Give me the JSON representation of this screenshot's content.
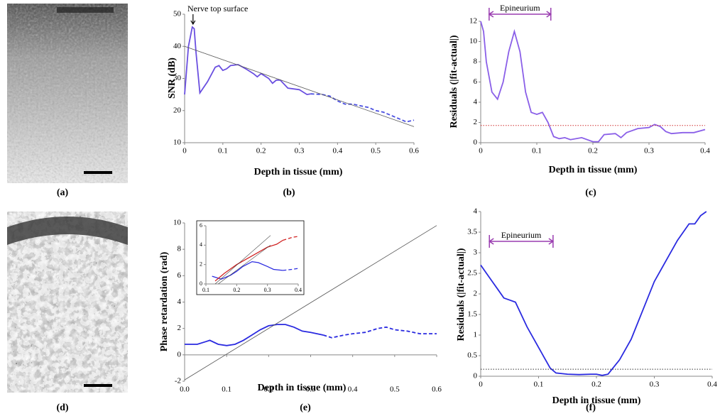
{
  "panels": [
    "(a)",
    "(b)",
    "(c)",
    "(d)",
    "(e)",
    "(f)"
  ],
  "chart_data": [
    {
      "type": "line",
      "xlabel": "Depth in tissue (mm)",
      "ylabel": "SNR (dB)",
      "xlim": [
        0,
        0.6
      ],
      "ylim": [
        10,
        50
      ],
      "xticks": [
        0,
        0.1,
        0.2,
        0.3,
        0.4,
        0.5,
        0.6
      ],
      "yticks": [
        10,
        20,
        30,
        40,
        50
      ],
      "annotations": [
        "Nerve top surface"
      ],
      "series": [
        {
          "color": "#6a4fe0",
          "dash": "solid",
          "x": [
            0,
            0.01,
            0.02,
            0.025,
            0.03,
            0.04,
            0.06,
            0.08,
            0.09,
            0.1,
            0.11,
            0.12,
            0.14,
            0.16,
            0.18,
            0.19,
            0.2,
            0.22,
            0.23,
            0.24,
            0.25,
            0.27,
            0.3,
            0.32,
            0.33
          ],
          "values": [
            25,
            40,
            46,
            45.5,
            38,
            25.5,
            29,
            33.5,
            34,
            32.5,
            33,
            34,
            34.3,
            33,
            31.5,
            30.5,
            31.5,
            30,
            28.5,
            29.5,
            29.5,
            27,
            26.5,
            25,
            25.2
          ]
        },
        {
          "color": "#4a4fe0",
          "dash": "dashed",
          "x": [
            0.33,
            0.36,
            0.38,
            0.4,
            0.42,
            0.44,
            0.46,
            0.48,
            0.5,
            0.52,
            0.54,
            0.56,
            0.58,
            0.6
          ],
          "values": [
            25.2,
            25,
            24.5,
            23,
            22,
            22,
            21.5,
            21,
            20,
            19.5,
            18.5,
            17.5,
            16.5,
            17
          ]
        },
        {
          "color": "#555555",
          "dash": "thin",
          "x": [
            0,
            0.6
          ],
          "values": [
            40,
            15
          ]
        }
      ]
    },
    {
      "type": "line",
      "xlabel": "Depth in tissue (mm)",
      "ylabel": "Residuals (|fit-actual|)",
      "xlim": [
        0,
        0.4
      ],
      "ylim": [
        0,
        12
      ],
      "xticks": [
        0,
        0.1,
        0.2,
        0.3,
        0.4
      ],
      "yticks": [
        0,
        2,
        4,
        6,
        8,
        10,
        12
      ],
      "annotations": [
        "Epineurium"
      ],
      "series": [
        {
          "color": "#8a5fe8",
          "dash": "solid",
          "x": [
            0,
            0.005,
            0.01,
            0.02,
            0.03,
            0.04,
            0.05,
            0.06,
            0.07,
            0.08,
            0.09,
            0.1,
            0.11,
            0.12,
            0.13,
            0.14,
            0.15,
            0.16,
            0.18,
            0.2,
            0.21,
            0.22,
            0.24,
            0.25,
            0.26,
            0.28,
            0.3,
            0.31,
            0.32,
            0.33,
            0.34,
            0.36,
            0.38,
            0.4
          ],
          "values": [
            12,
            11,
            8,
            5,
            4.3,
            6,
            9,
            11,
            9,
            5,
            3,
            2.8,
            3,
            2,
            0.6,
            0.4,
            0.5,
            0.3,
            0.5,
            0.1,
            0.1,
            0.8,
            0.9,
            0.5,
            1.0,
            1.4,
            1.5,
            1.8,
            1.6,
            1.1,
            0.9,
            1.0,
            1,
            1.3
          ]
        },
        {
          "color": "#d03030",
          "dash": "dotted",
          "x": [
            0,
            0.4
          ],
          "values": [
            1.7,
            1.7
          ]
        }
      ]
    },
    {
      "type": "line",
      "xlabel": "Depth in tissue (mm)",
      "ylabel": "Phase retardation (rad)",
      "xlim": [
        0,
        0.6
      ],
      "ylim": [
        -2,
        10
      ],
      "xticks": [
        {
          "value": 0,
          "label": "0.0"
        },
        0.1,
        0.2,
        0.3,
        0.4,
        0.5,
        0.6
      ],
      "yticks": [
        -2,
        0,
        2,
        4,
        6,
        8,
        10
      ],
      "series": [
        {
          "color": "#2a2ae0",
          "dash": "solid",
          "x": [
            0,
            0.03,
            0.05,
            0.06,
            0.08,
            0.1,
            0.12,
            0.14,
            0.16,
            0.18,
            0.2,
            0.22,
            0.24,
            0.26,
            0.28,
            0.3,
            0.33
          ],
          "values": [
            0.8,
            0.8,
            1,
            1.1,
            0.8,
            0.7,
            0.8,
            1.1,
            1.5,
            1.9,
            2.2,
            2.3,
            2.3,
            2.1,
            1.8,
            1.7,
            1.5
          ]
        },
        {
          "color": "#2a2ae0",
          "dash": "dashed",
          "x": [
            0.33,
            0.35,
            0.38,
            0.4,
            0.43,
            0.46,
            0.48,
            0.5,
            0.53,
            0.56,
            0.6
          ],
          "values": [
            1.5,
            1.3,
            1.5,
            1.6,
            1.7,
            2.0,
            2.1,
            1.9,
            1.8,
            1.6,
            1.6
          ]
        },
        {
          "color": "#555555",
          "dash": "thin",
          "x": [
            0,
            0.6
          ],
          "values": [
            -1.9,
            9.8
          ]
        }
      ]
    },
    {
      "type": "line",
      "inset": true,
      "xlim": [
        0.1,
        0.4
      ],
      "ylim": [
        0,
        6
      ],
      "xticks": [
        0.1,
        0.2,
        0.3,
        0.4
      ],
      "yticks": [
        0,
        2,
        4,
        6
      ],
      "series": [
        {
          "color": "#2a2ae0",
          "dash": "solid",
          "x": [
            0.12,
            0.15,
            0.18,
            0.2,
            0.22,
            0.25,
            0.27,
            0.3,
            0.32,
            0.35
          ],
          "values": [
            0.8,
            0.5,
            0.9,
            1.3,
            1.8,
            2.3,
            2.2,
            1.8,
            1.5,
            1.4
          ]
        },
        {
          "color": "#2a2ae0",
          "dash": "dashed",
          "x": [
            0.35,
            0.38,
            0.4
          ],
          "values": [
            1.4,
            1.5,
            1.6
          ]
        },
        {
          "color": "#d02020",
          "dash": "solid",
          "x": [
            0.13,
            0.16,
            0.2,
            0.25,
            0.3,
            0.33,
            0.35
          ],
          "values": [
            0.3,
            1.1,
            2.0,
            2.9,
            3.8,
            4.1,
            4.5
          ]
        },
        {
          "color": "#d02020",
          "dash": "dashed",
          "x": [
            0.35,
            0.38,
            0.4
          ],
          "values": [
            4.5,
            4.8,
            4.9
          ]
        },
        {
          "color": "#333333",
          "dash": "thin",
          "x": [
            0.13,
            0.31
          ],
          "values": [
            0,
            5
          ]
        },
        {
          "color": "#333333",
          "dash": "thin",
          "x": [
            0.14,
            0.31
          ],
          "values": [
            0,
            4
          ]
        }
      ]
    },
    {
      "type": "line",
      "xlabel": "Depth in tissue (mm)",
      "ylabel": "Residuals (|fit-actual|)",
      "xlim": [
        0,
        0.4
      ],
      "ylim": [
        0,
        4
      ],
      "xticks": [
        0,
        0.1,
        0.2,
        0.3,
        0.4
      ],
      "yticks": [
        0,
        0.5,
        1,
        1.5,
        2,
        2.5,
        3,
        3.5,
        4
      ],
      "annotations": [
        "Epineurium"
      ],
      "series": [
        {
          "color": "#2a2ae0",
          "dash": "solid",
          "x": [
            0,
            0.01,
            0.02,
            0.03,
            0.04,
            0.05,
            0.06,
            0.08,
            0.1,
            0.11,
            0.12,
            0.13,
            0.15,
            0.17,
            0.19,
            0.2,
            0.21,
            0.22,
            0.24,
            0.26,
            0.28,
            0.3,
            0.32,
            0.34,
            0.36,
            0.37,
            0.38,
            0.39
          ],
          "values": [
            2.7,
            2.5,
            2.3,
            2.1,
            1.9,
            1.85,
            1.8,
            1.2,
            0.7,
            0.45,
            0.2,
            0.08,
            0.05,
            0.04,
            0.05,
            0.05,
            0.02,
            0.05,
            0.4,
            0.9,
            1.6,
            2.3,
            2.8,
            3.3,
            3.7,
            3.7,
            3.9,
            4.0
          ]
        },
        {
          "color": "#333333",
          "dash": "dotted",
          "x": [
            0,
            0.4
          ],
          "values": [
            0.17,
            0.17
          ]
        }
      ]
    }
  ]
}
